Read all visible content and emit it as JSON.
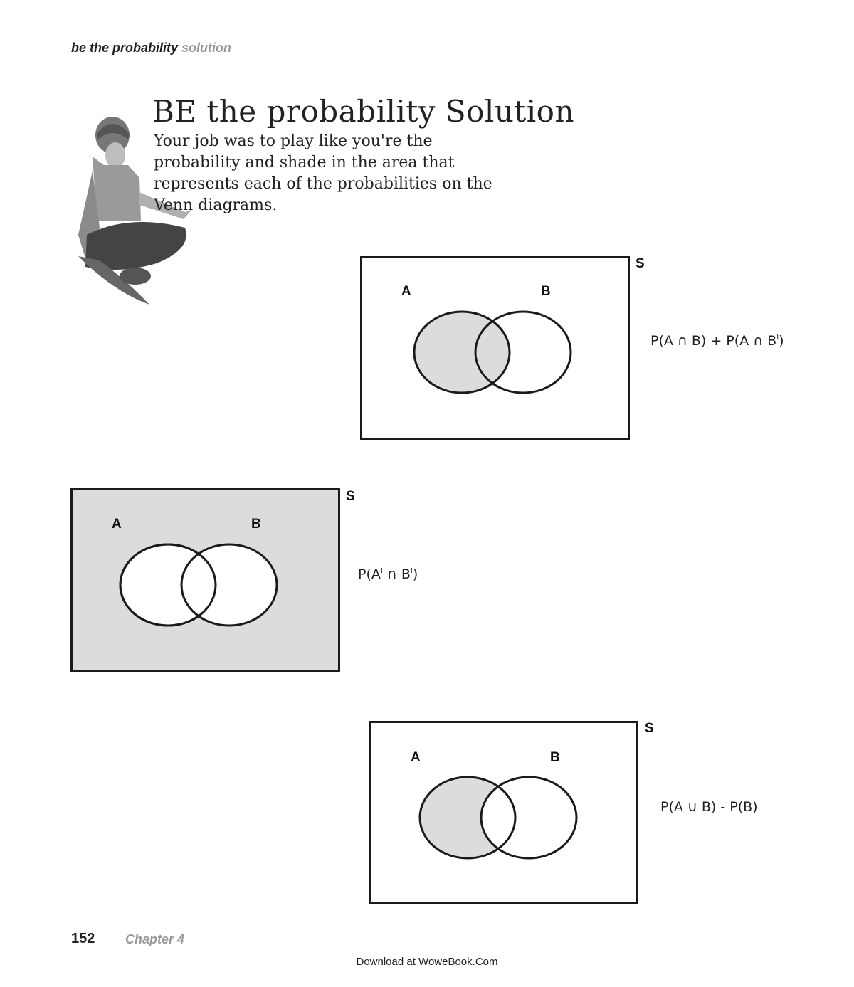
{
  "header": {
    "section": "be the probability",
    "suffix": "solution"
  },
  "title": "BE the probability Solution",
  "intro": "Your job was to play like you're the probability and shade in the area that represents each of the probabilities on the Venn diagrams.",
  "colors": {
    "shade": "#dcdcdc",
    "stroke": "#1a1a1a"
  },
  "diagrams": [
    {
      "sample_space_label": "S",
      "set_a_label": "A",
      "set_b_label": "B",
      "expression": {
        "text": "P(A ∩ B) + P(A ∩ B",
        "prime": "I",
        "close": ")"
      },
      "shaded_region": "A"
    },
    {
      "sample_space_label": "S",
      "set_a_label": "A",
      "set_b_label": "B",
      "expression": {
        "text": "P(A",
        "prime": "I",
        "mid": " ∩ B",
        "prime2": "I",
        "close": ")"
      },
      "shaded_region": "outside A and B"
    },
    {
      "sample_space_label": "S",
      "set_a_label": "A",
      "set_b_label": "B",
      "expression": {
        "text": "P(A ∪ B) - P(B)"
      },
      "shaded_region": "A only"
    }
  ],
  "footer": {
    "page_number": "152",
    "chapter": "Chapter 4",
    "download": "Download at WoweBook.Com"
  }
}
